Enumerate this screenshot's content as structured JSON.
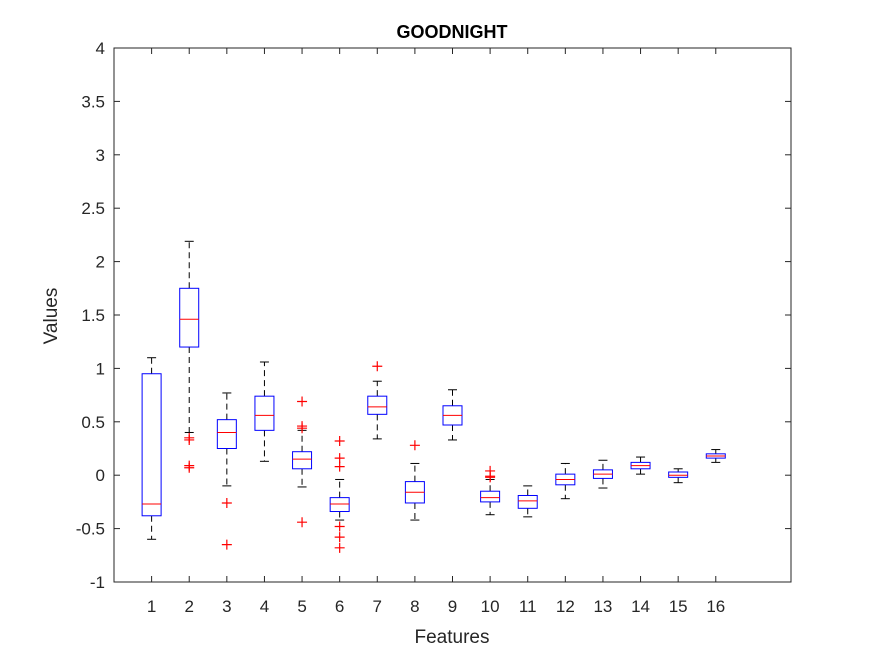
{
  "chart_data": {
    "type": "boxplot",
    "title": "GOODNIGHT",
    "xlabel": "Features",
    "ylabel": "Values",
    "ylim": [
      -1,
      4
    ],
    "yticks": [
      -1,
      -0.5,
      0,
      0.5,
      1,
      1.5,
      2,
      2.5,
      3,
      3.5,
      4
    ],
    "ytick_labels": [
      "-1",
      "-0.5",
      "0",
      "0.5",
      "1",
      "1.5",
      "2",
      "2.5",
      "3",
      "3.5",
      "4"
    ],
    "xlim": [
      0,
      18
    ],
    "categories": [
      "1",
      "2",
      "3",
      "4",
      "5",
      "6",
      "7",
      "8",
      "9",
      "10",
      "11",
      "12",
      "13",
      "14",
      "15",
      "16"
    ],
    "colors": {
      "box": "#0000ff",
      "median": "#ff0000",
      "whisker": "#000000",
      "outlier": "#ff0000",
      "axis": "#262626"
    },
    "boxes": [
      {
        "label": "1",
        "min": -0.6,
        "q1": -0.38,
        "median": -0.27,
        "q3": 0.95,
        "max": 1.1,
        "outliers": []
      },
      {
        "label": "2",
        "min": 0.4,
        "q1": 1.2,
        "median": 1.46,
        "q3": 1.75,
        "max": 2.19,
        "outliers": [
          0.35,
          0.33,
          0.09,
          0.07
        ]
      },
      {
        "label": "3",
        "min": -0.1,
        "q1": 0.25,
        "median": 0.4,
        "q3": 0.52,
        "max": 0.77,
        "outliers": [
          -0.26,
          -0.65
        ]
      },
      {
        "label": "4",
        "min": 0.13,
        "q1": 0.42,
        "median": 0.56,
        "q3": 0.74,
        "max": 1.06,
        "outliers": []
      },
      {
        "label": "5",
        "min": -0.11,
        "q1": 0.06,
        "median": 0.15,
        "q3": 0.22,
        "max": 0.42,
        "outliers": [
          0.69,
          0.46,
          0.44,
          -0.44
        ]
      },
      {
        "label": "6",
        "min": -0.42,
        "q1": -0.34,
        "median": -0.27,
        "q3": -0.21,
        "max": -0.04,
        "outliers": [
          0.32,
          0.16,
          0.08,
          -0.48,
          -0.58,
          -0.68
        ]
      },
      {
        "label": "7",
        "min": 0.34,
        "q1": 0.57,
        "median": 0.64,
        "q3": 0.74,
        "max": 0.88,
        "outliers": [
          1.02
        ]
      },
      {
        "label": "8",
        "min": -0.42,
        "q1": -0.26,
        "median": -0.16,
        "q3": -0.06,
        "max": 0.11,
        "outliers": [
          0.28
        ]
      },
      {
        "label": "9",
        "min": 0.33,
        "q1": 0.47,
        "median": 0.56,
        "q3": 0.65,
        "max": 0.8,
        "outliers": []
      },
      {
        "label": "10",
        "min": -0.37,
        "q1": -0.25,
        "median": -0.21,
        "q3": -0.15,
        "max": -0.04,
        "outliers": [
          0.04,
          -0.01,
          -0.02
        ]
      },
      {
        "label": "11",
        "min": -0.39,
        "q1": -0.31,
        "median": -0.24,
        "q3": -0.19,
        "max": -0.1,
        "outliers": []
      },
      {
        "label": "12",
        "min": -0.22,
        "q1": -0.09,
        "median": -0.04,
        "q3": 0.01,
        "max": 0.11,
        "outliers": []
      },
      {
        "label": "13",
        "min": -0.12,
        "q1": -0.03,
        "median": 0.01,
        "q3": 0.05,
        "max": 0.14,
        "outliers": []
      },
      {
        "label": "14",
        "min": 0.01,
        "q1": 0.06,
        "median": 0.09,
        "q3": 0.12,
        "max": 0.17,
        "outliers": []
      },
      {
        "label": "15",
        "min": -0.07,
        "q1": -0.02,
        "median": 0.0,
        "q3": 0.03,
        "max": 0.06,
        "outliers": []
      },
      {
        "label": "16",
        "min": 0.12,
        "q1": 0.16,
        "median": 0.18,
        "q3": 0.2,
        "max": 0.24,
        "outliers": []
      }
    ]
  }
}
